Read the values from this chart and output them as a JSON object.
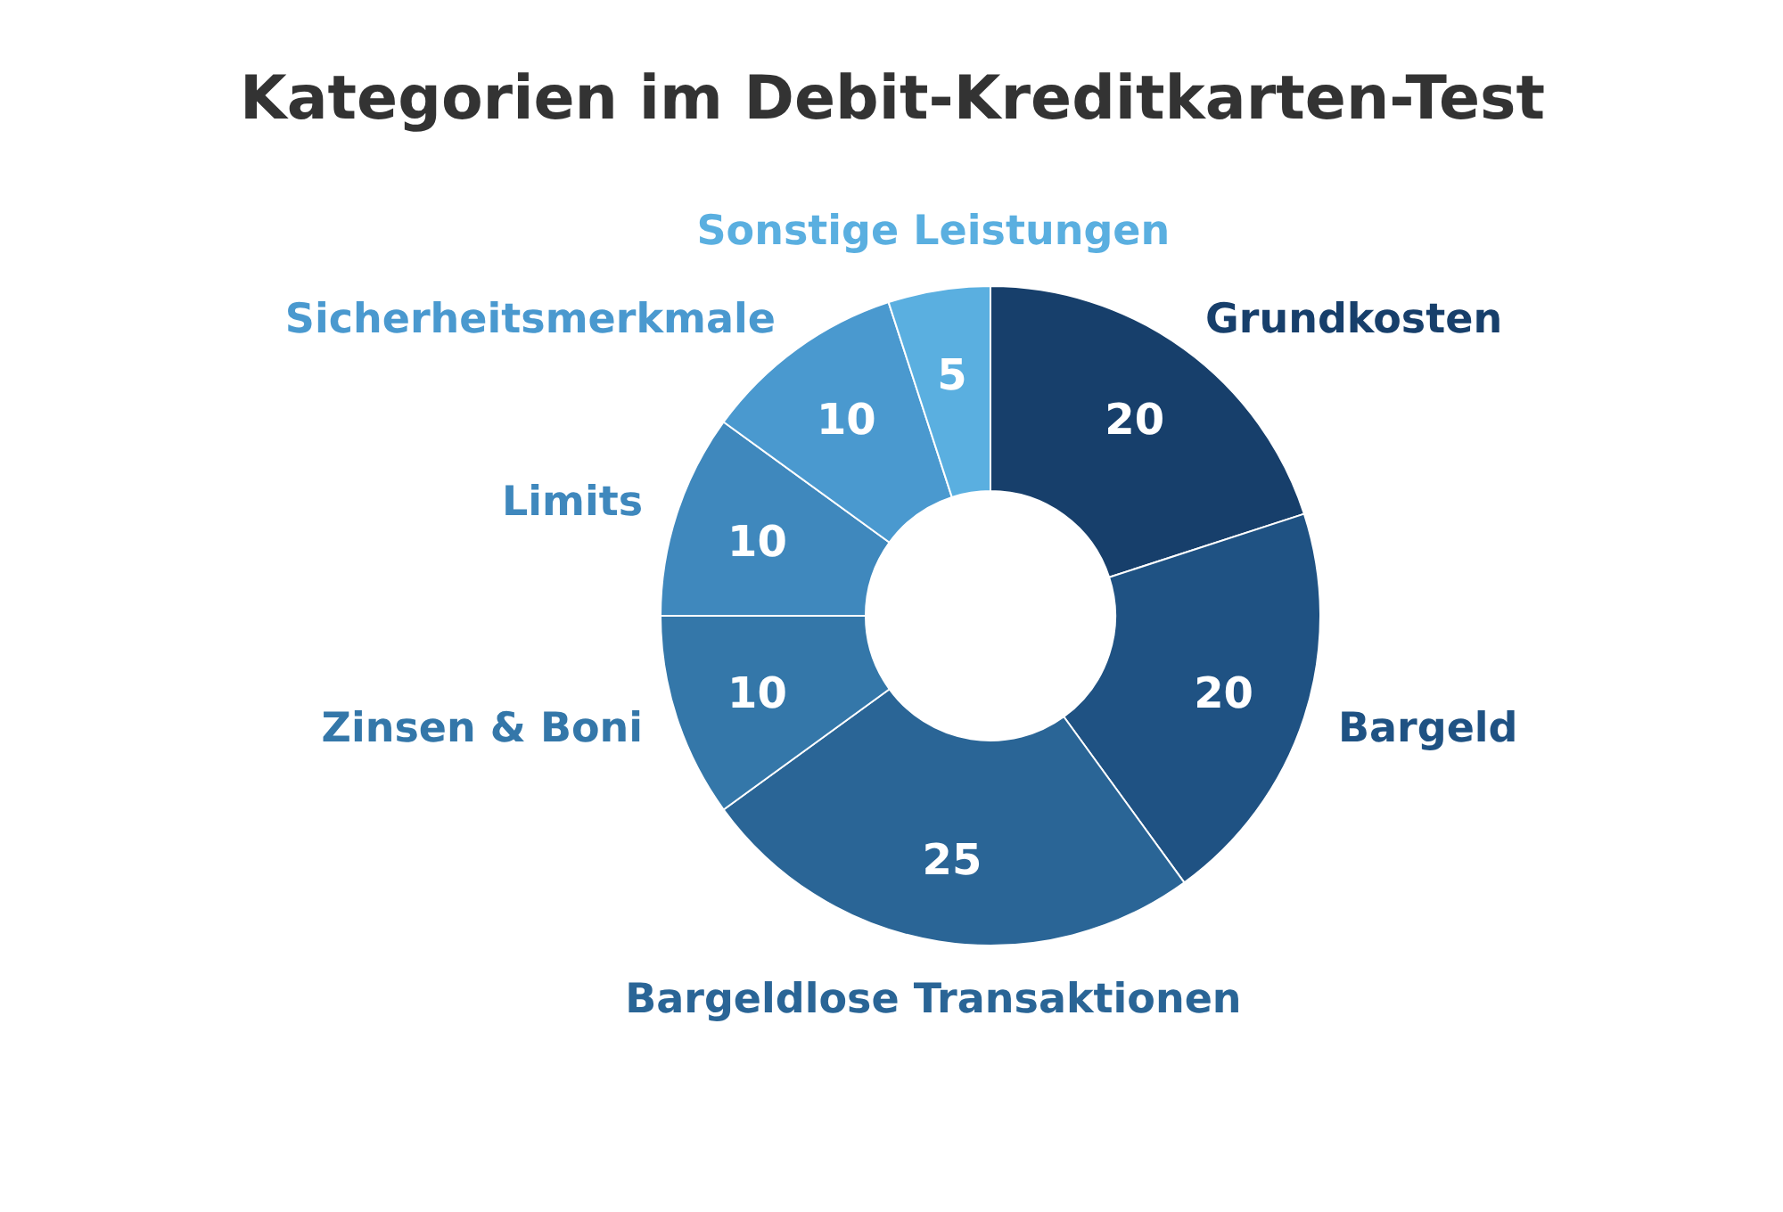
{
  "chart_data": {
    "type": "donut",
    "title": "Kategorien im Debit-Kreditkarten-Test",
    "categories": [
      "Grundkosten",
      "Bargeld",
      "Bargeldlose Transaktionen",
      "Zinsen & Boni",
      "Limits",
      "Sicherheitsmerkmale",
      "Sonstige Leistungen"
    ],
    "values": [
      20,
      20,
      25,
      10,
      10,
      10,
      5
    ],
    "colors": [
      "#173f6b",
      "#1f5283",
      "#2a6596",
      "#3477a9",
      "#3f88bd",
      "#4a99cf",
      "#5aafe0"
    ],
    "data_labels": true
  }
}
